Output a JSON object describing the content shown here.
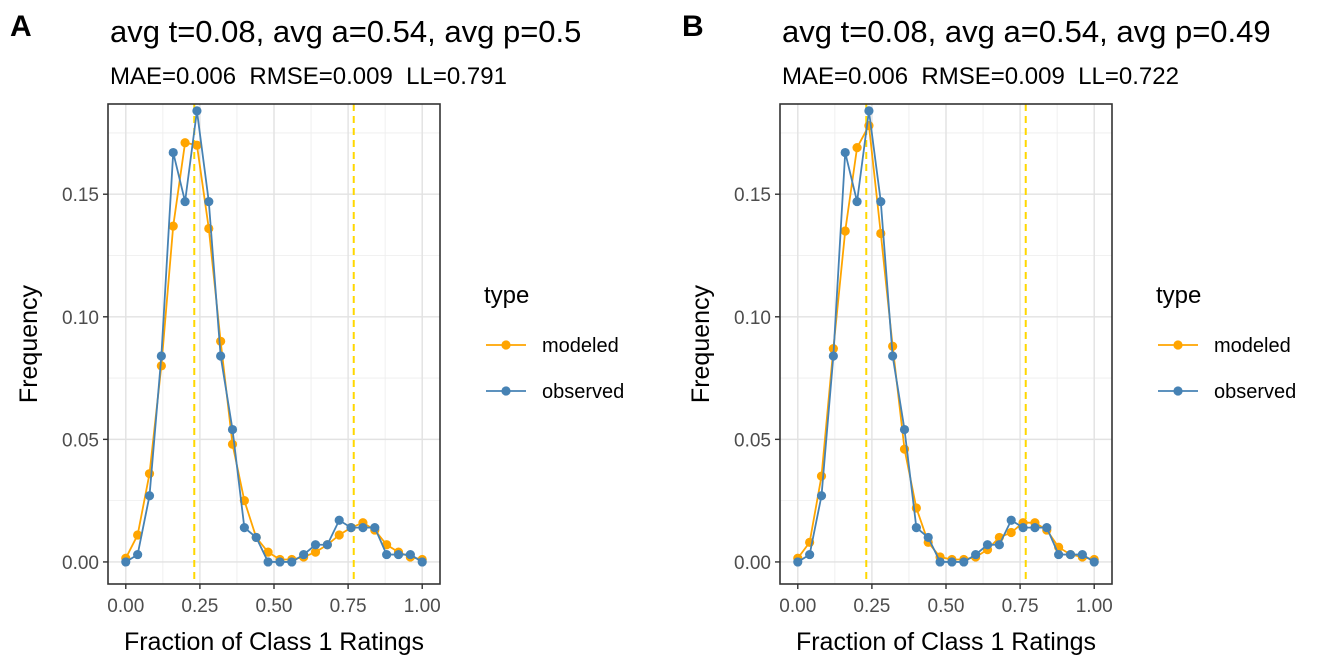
{
  "chart_data": [
    {
      "panel_label": "A",
      "type": "line",
      "title": "avg t=0.08, avg a=0.54, avg p=0.5",
      "subtitle": "MAE=0.006  RMSE=0.009  LL=0.791",
      "xlabel": "Fraction of Class 1 Ratings",
      "ylabel": "Frequency",
      "xlim": [
        -0.06,
        1.06
      ],
      "ylim": [
        -0.009,
        0.1868
      ],
      "x_ticks": [
        0,
        0.25,
        0.5,
        0.75,
        1
      ],
      "x_tick_labels": [
        "0.00",
        "0.25",
        "0.50",
        "0.75",
        "1.00"
      ],
      "y_ticks": [
        0,
        0.05,
        0.1,
        0.15
      ],
      "y_tick_labels": [
        "0.00",
        "0.05",
        "0.10",
        "0.15"
      ],
      "grid": true,
      "vlines": [
        0.231,
        0.769
      ],
      "vline_color": "#FFD700",
      "legend": {
        "title": "type",
        "placement": "right"
      },
      "x": [
        0,
        0.04,
        0.08,
        0.12,
        0.16,
        0.2,
        0.24,
        0.28,
        0.32,
        0.36,
        0.4,
        0.44,
        0.48,
        0.52,
        0.56,
        0.6,
        0.64,
        0.68,
        0.72,
        0.76,
        0.8,
        0.84,
        0.88,
        0.92,
        0.96,
        1.0
      ],
      "series": [
        {
          "name": "modeled",
          "color": "#FFA500",
          "values": [
            0.0015,
            0.011,
            0.036,
            0.08,
            0.137,
            0.171,
            0.17,
            0.136,
            0.09,
            0.048,
            0.025,
            0.01,
            0.004,
            0.001,
            0.001,
            0.002,
            0.004,
            0.007,
            0.011,
            0.014,
            0.016,
            0.013,
            0.007,
            0.004,
            0.002,
            0.001
          ]
        },
        {
          "name": "observed",
          "color": "#4682B4",
          "values": [
            0.0,
            0.003,
            0.027,
            0.084,
            0.167,
            0.147,
            0.184,
            0.147,
            0.084,
            0.054,
            0.014,
            0.01,
            0.0,
            0.0,
            0.0,
            0.003,
            0.007,
            0.007,
            0.017,
            0.014,
            0.014,
            0.014,
            0.003,
            0.003,
            0.003,
            0.0
          ]
        }
      ]
    },
    {
      "panel_label": "B",
      "type": "line",
      "title": "avg t=0.08, avg a=0.54, avg p=0.49",
      "subtitle": "MAE=0.006  RMSE=0.009  LL=0.722",
      "xlabel": "Fraction of Class 1 Ratings",
      "ylabel": "Frequency",
      "xlim": [
        -0.06,
        1.06
      ],
      "ylim": [
        -0.009,
        0.1868
      ],
      "x_ticks": [
        0,
        0.25,
        0.5,
        0.75,
        1
      ],
      "x_tick_labels": [
        "0.00",
        "0.25",
        "0.50",
        "0.75",
        "1.00"
      ],
      "y_ticks": [
        0,
        0.05,
        0.1,
        0.15
      ],
      "y_tick_labels": [
        "0.00",
        "0.05",
        "0.10",
        "0.15"
      ],
      "grid": true,
      "vlines": [
        0.231,
        0.769
      ],
      "vline_color": "#FFD700",
      "legend": {
        "title": "type",
        "placement": "right"
      },
      "x": [
        0,
        0.04,
        0.08,
        0.12,
        0.16,
        0.2,
        0.24,
        0.28,
        0.32,
        0.36,
        0.4,
        0.44,
        0.48,
        0.52,
        0.56,
        0.6,
        0.64,
        0.68,
        0.72,
        0.76,
        0.8,
        0.84,
        0.88,
        0.92,
        0.96,
        1.0
      ],
      "series": [
        {
          "name": "modeled",
          "color": "#FFA500",
          "values": [
            0.0015,
            0.008,
            0.035,
            0.087,
            0.135,
            0.169,
            0.178,
            0.134,
            0.088,
            0.046,
            0.022,
            0.008,
            0.002,
            0.001,
            0.001,
            0.002,
            0.005,
            0.01,
            0.012,
            0.016,
            0.016,
            0.013,
            0.006,
            0.003,
            0.002,
            0.001
          ]
        },
        {
          "name": "observed",
          "color": "#4682B4",
          "values": [
            0.0,
            0.003,
            0.027,
            0.084,
            0.167,
            0.147,
            0.184,
            0.147,
            0.084,
            0.054,
            0.014,
            0.01,
            0.0,
            0.0,
            0.0,
            0.003,
            0.007,
            0.007,
            0.017,
            0.014,
            0.014,
            0.014,
            0.003,
            0.003,
            0.003,
            0.0
          ]
        }
      ]
    }
  ]
}
